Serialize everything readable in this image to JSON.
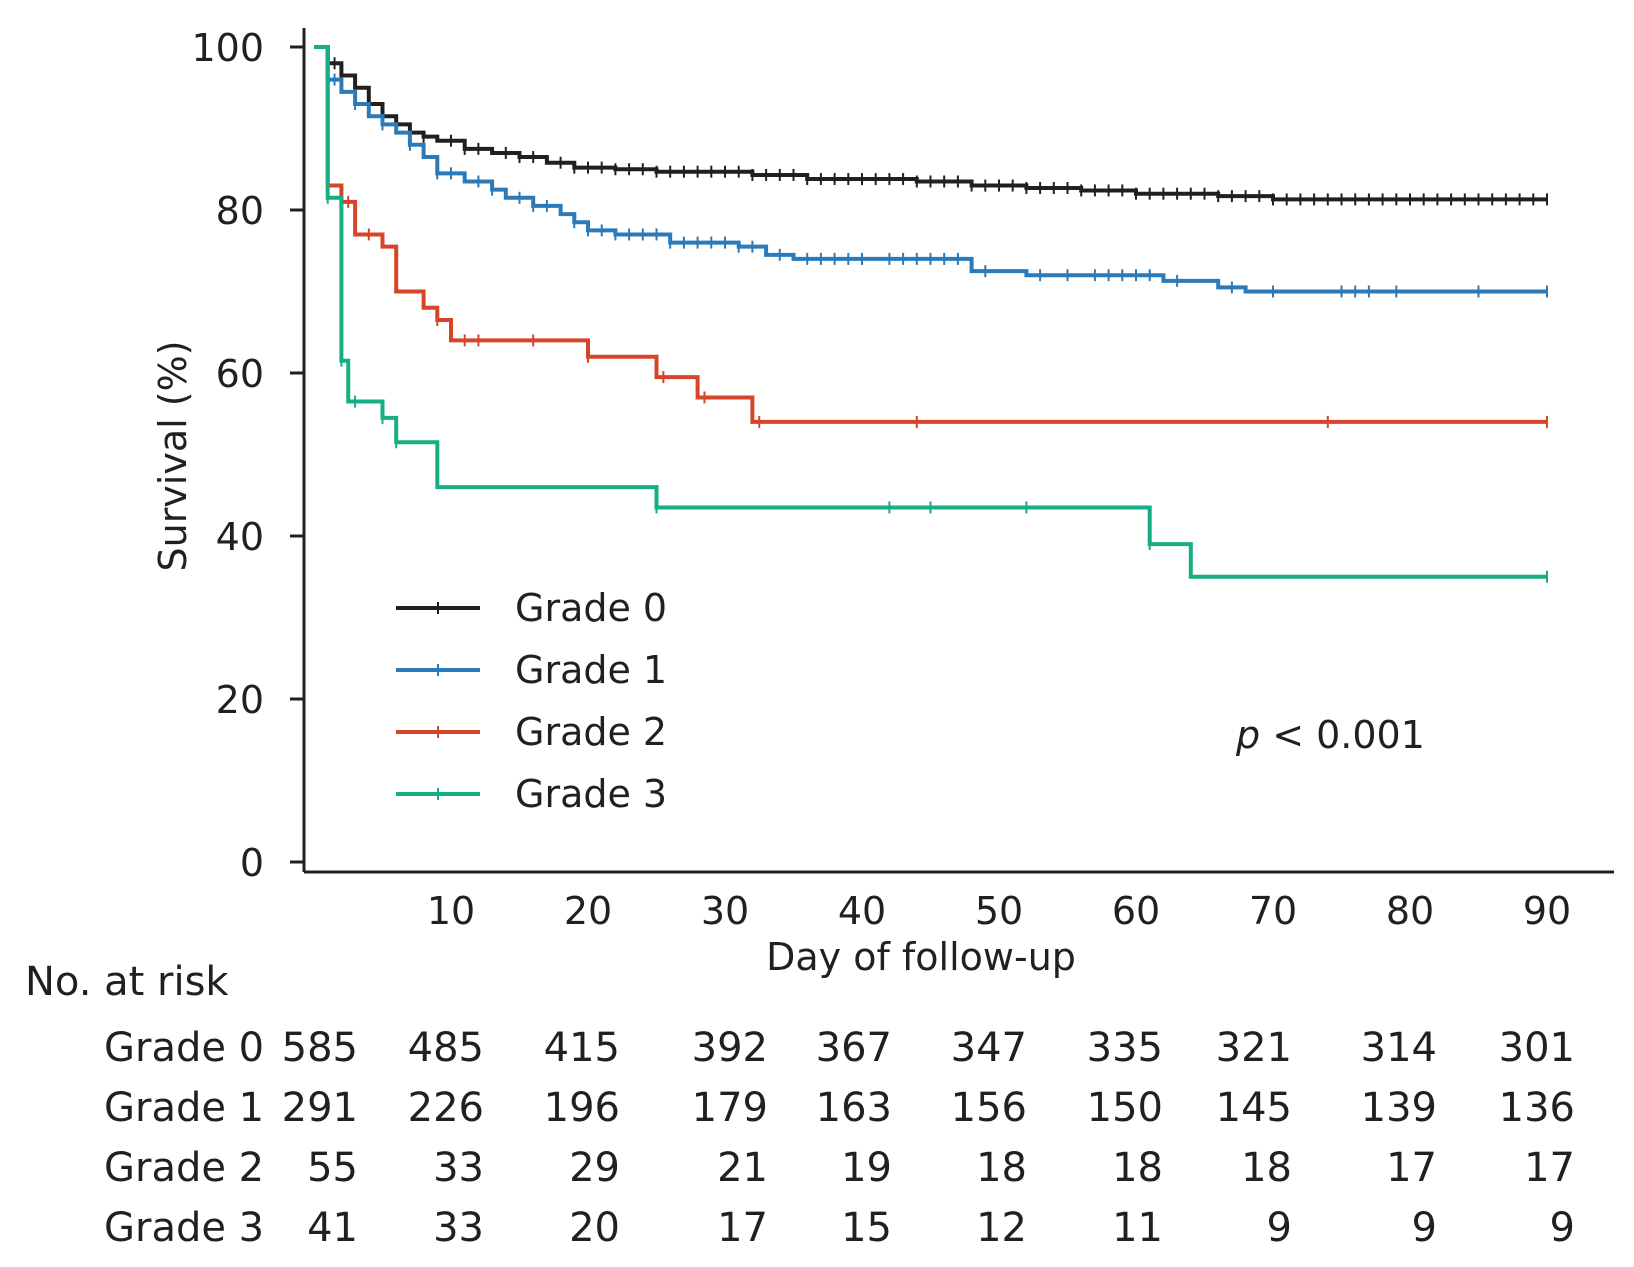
{
  "chart_data": {
    "type": "line",
    "subtype": "kaplan-meier-step",
    "xlabel": "Day of follow-up",
    "ylabel": "Survival (%)",
    "xlim": [
      0,
      94
    ],
    "ylim": [
      0,
      100
    ],
    "x_ticks": [
      10,
      20,
      30,
      40,
      50,
      60,
      70,
      80,
      90
    ],
    "y_ticks": [
      0,
      20,
      40,
      60,
      80,
      100
    ],
    "legend_position": "center-left",
    "annotation": {
      "prefix": "p",
      "text": " < 0.001"
    },
    "series": [
      {
        "name": "Grade 0",
        "color": "#231f20",
        "steps": [
          [
            0,
            100
          ],
          [
            1,
            98
          ],
          [
            2,
            96.5
          ],
          [
            3,
            95
          ],
          [
            4,
            93
          ],
          [
            5,
            91.5
          ],
          [
            6,
            90.5
          ],
          [
            7,
            89.5
          ],
          [
            8,
            89
          ],
          [
            9,
            88.5
          ],
          [
            11,
            87.5
          ],
          [
            13,
            87
          ],
          [
            15,
            86.5
          ],
          [
            17,
            85.8
          ],
          [
            19,
            85.2
          ],
          [
            22,
            85
          ],
          [
            25,
            84.7
          ],
          [
            32,
            84.3
          ],
          [
            36,
            83.8
          ],
          [
            44,
            83.5
          ],
          [
            48,
            83
          ],
          [
            52,
            82.7
          ],
          [
            56,
            82.4
          ],
          [
            60,
            82
          ],
          [
            66,
            81.7
          ],
          [
            70,
            81.3
          ],
          [
            90,
            81.3
          ]
        ],
        "censored": [
          1.5,
          4,
          6,
          8,
          10,
          11,
          12,
          14,
          15,
          16,
          18,
          19,
          20,
          21,
          22,
          23,
          24,
          25,
          26,
          27,
          28,
          29,
          30,
          31,
          32,
          33,
          34,
          35,
          36,
          37,
          38,
          39,
          40,
          41,
          42,
          43,
          44,
          45,
          46,
          47,
          48,
          49,
          50,
          51,
          52,
          53,
          54,
          55,
          56,
          57,
          58,
          59,
          60,
          61,
          62,
          63,
          64,
          65,
          66,
          67,
          68,
          69,
          70,
          71,
          72,
          73,
          74,
          75,
          76,
          77,
          78,
          79,
          80,
          81,
          82,
          83,
          84,
          85,
          86,
          87,
          88,
          89,
          90
        ]
      },
      {
        "name": "Grade 1",
        "color": "#2b7bba",
        "steps": [
          [
            0,
            100
          ],
          [
            1,
            96
          ],
          [
            2,
            94.5
          ],
          [
            3,
            93
          ],
          [
            4,
            91.5
          ],
          [
            5,
            90.5
          ],
          [
            6,
            89.5
          ],
          [
            7,
            88
          ],
          [
            8,
            86.5
          ],
          [
            9,
            84.5
          ],
          [
            11,
            83.5
          ],
          [
            13,
            82.5
          ],
          [
            14,
            81.5
          ],
          [
            16,
            80.5
          ],
          [
            18,
            79.5
          ],
          [
            19,
            78.5
          ],
          [
            20,
            77.5
          ],
          [
            22,
            77
          ],
          [
            26,
            76
          ],
          [
            31,
            75.5
          ],
          [
            33,
            74.5
          ],
          [
            35,
            74
          ],
          [
            48,
            72.5
          ],
          [
            52,
            72
          ],
          [
            62,
            71.3
          ],
          [
            66,
            70.5
          ],
          [
            68,
            70
          ],
          [
            90,
            70
          ]
        ],
        "censored": [
          1.5,
          3,
          5,
          7,
          9,
          10,
          12,
          13,
          15,
          16,
          17,
          19,
          20,
          21,
          22,
          23,
          24,
          25,
          26,
          27,
          28,
          29,
          30,
          31,
          32,
          34,
          36,
          37,
          38,
          39,
          40,
          42,
          43,
          44,
          45,
          46,
          47,
          49,
          53,
          55,
          57,
          58,
          59,
          60,
          61,
          63,
          67,
          70,
          75,
          76,
          77,
          79,
          85,
          90
        ]
      },
      {
        "name": "Grade 2",
        "color": "#d6452a",
        "steps": [
          [
            0,
            100
          ],
          [
            1,
            83
          ],
          [
            2,
            81
          ],
          [
            3,
            77
          ],
          [
            5,
            75.5
          ],
          [
            6,
            70
          ],
          [
            8,
            68
          ],
          [
            9,
            66.5
          ],
          [
            10,
            64
          ],
          [
            20,
            62
          ],
          [
            25,
            59.5
          ],
          [
            28,
            57
          ],
          [
            32,
            54
          ],
          [
            90,
            54
          ]
        ],
        "censored": [
          2.5,
          4,
          9,
          11,
          12,
          16,
          20,
          25.5,
          28.5,
          32.5,
          44,
          74,
          90
        ]
      },
      {
        "name": "Grade 3",
        "color": "#17ad85",
        "steps": [
          [
            0,
            100
          ],
          [
            1,
            81.5
          ],
          [
            2,
            61.5
          ],
          [
            2.5,
            56.5
          ],
          [
            5,
            54.5
          ],
          [
            6,
            51.5
          ],
          [
            9,
            46
          ],
          [
            25,
            43.5
          ],
          [
            61,
            39
          ],
          [
            64,
            35
          ],
          [
            90,
            35
          ]
        ],
        "censored": [
          1,
          2,
          3,
          5,
          6,
          25,
          42,
          45,
          52,
          61,
          90
        ]
      }
    ]
  },
  "risk_table": {
    "title": "No. at risk",
    "rows": [
      {
        "label": "Grade 0",
        "values": [
          "585",
          "485",
          "415",
          "392",
          "367",
          "347",
          "335",
          "321",
          "314",
          "301"
        ]
      },
      {
        "label": "Grade 1",
        "values": [
          "291",
          "226",
          "196",
          "179",
          "163",
          "156",
          "150",
          "145",
          "139",
          "136"
        ]
      },
      {
        "label": "Grade 2",
        "values": [
          "55",
          "33",
          "29",
          "21",
          "19",
          "18",
          "18",
          "18",
          "17",
          "17"
        ]
      },
      {
        "label": "Grade 3",
        "values": [
          "41",
          "33",
          "20",
          "17",
          "15",
          "12",
          "11",
          "9",
          "9",
          "9"
        ]
      }
    ]
  }
}
